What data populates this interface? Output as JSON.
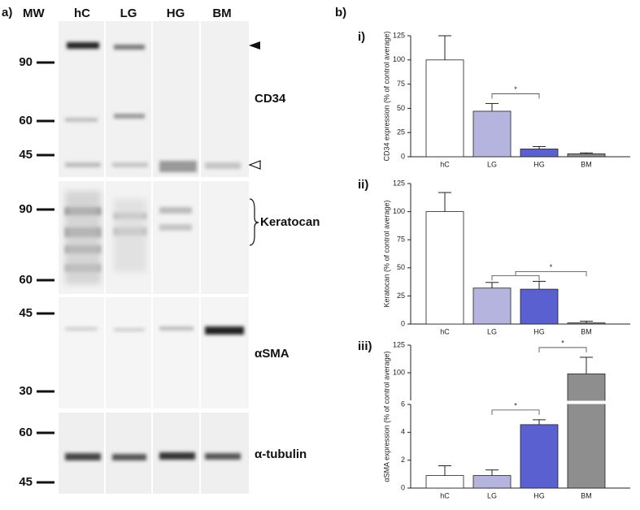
{
  "figure": {
    "panel_a": "a)",
    "panel_b": "b)",
    "mw": "MW",
    "lanes": [
      "hC",
      "LG",
      "HG",
      "BM"
    ],
    "blots": [
      {
        "name": "CD34",
        "markers": [
          "90",
          "60",
          "45"
        ]
      },
      {
        "name": "Keratocan",
        "markers": [
          "90",
          "60"
        ]
      },
      {
        "name": "αSMA",
        "markers": [
          "45",
          "30"
        ]
      },
      {
        "name": "α-tubulin",
        "markers": [
          "60",
          "45"
        ]
      }
    ]
  },
  "chart_data": [
    {
      "type": "bar",
      "panel": "i)",
      "y_label": "CD34 expression (% of control average)",
      "categories": [
        "hC",
        "LG",
        "HG",
        "BM"
      ],
      "values": [
        100,
        47,
        8,
        3
      ],
      "errors": [
        25,
        8,
        2.5,
        1
      ],
      "colors": [
        "#ffffff",
        "#b4b4de",
        "#5a60cf",
        "#8e8e8e"
      ],
      "ylim": [
        0,
        125
      ],
      "yticks": [
        0,
        25,
        50,
        75,
        100,
        125
      ],
      "significance": [
        {
          "between": [
            "LG",
            "HG"
          ],
          "label": "*"
        }
      ]
    },
    {
      "type": "bar",
      "panel": "ii)",
      "y_label": "Keratocan (% of control average)",
      "categories": [
        "hC",
        "LG",
        "HG",
        "BM"
      ],
      "values": [
        100,
        32,
        31,
        1
      ],
      "errors": [
        17,
        5,
        7,
        1.5
      ],
      "colors": [
        "#ffffff",
        "#b4b4de",
        "#5a60cf",
        "#8e8e8e"
      ],
      "ylim": [
        0,
        125
      ],
      "yticks": [
        0,
        25,
        50,
        75,
        100,
        125
      ],
      "significance": [
        {
          "between": [
            [
              "LG",
              "HG"
            ],
            "BM"
          ],
          "label": "*"
        }
      ]
    },
    {
      "type": "bar",
      "panel": "iii)",
      "y_label": "αSMA expression (% of control average)",
      "categories": [
        "hC",
        "LG",
        "HG",
        "BM"
      ],
      "values": [
        0.9,
        0.9,
        4.55,
        99
      ],
      "errors": [
        0.7,
        0.4,
        0.35,
        15
      ],
      "colors": [
        "#ffffff",
        "#b4b4de",
        "#5a60cf",
        "#8e8e8e"
      ],
      "ylim": [
        0,
        6
      ],
      "yticks": [
        0,
        2,
        4,
        6
      ],
      "axis_break": {
        "ylim": [
          75,
          125
        ],
        "yticks": [
          100,
          125
        ]
      },
      "significance": [
        {
          "between": [
            "LG",
            "HG"
          ],
          "label": "*"
        },
        {
          "between": [
            "HG",
            "BM"
          ],
          "label": "*"
        }
      ]
    }
  ]
}
